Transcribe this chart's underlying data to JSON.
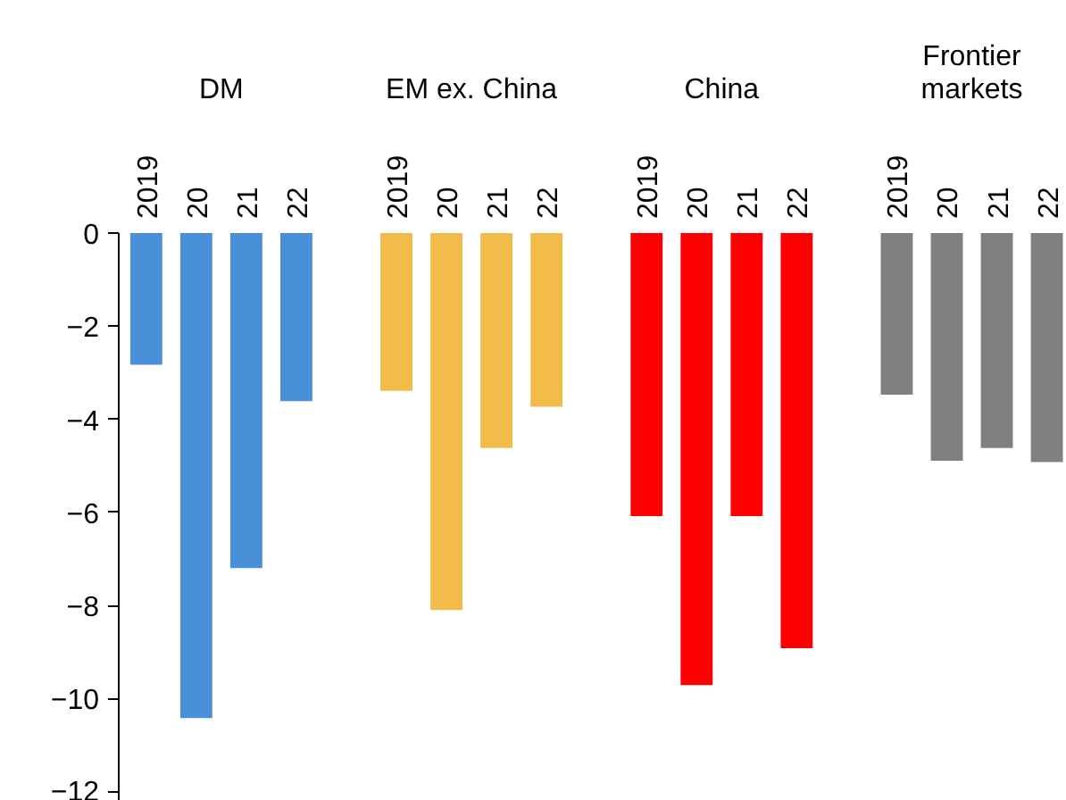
{
  "chart_data": {
    "type": "bar",
    "categories": [
      "2019",
      "20",
      "21",
      "22",
      null,
      "2019",
      "20",
      "21",
      "22",
      null,
      "2019",
      "20",
      "21",
      "22",
      null,
      "2019",
      "20",
      "21",
      "22"
    ],
    "series": [
      {
        "color": "#4a90d9",
        "values": [
          -2.83,
          -10.42,
          -7.2,
          -3.61,
          null,
          null,
          null,
          null,
          null,
          null,
          null,
          null,
          null,
          null,
          null,
          null,
          null,
          null,
          null
        ]
      },
      {
        "color": "#f2bc4b",
        "values": [
          null,
          null,
          null,
          null,
          null,
          -3.39,
          -8.1,
          -4.62,
          -3.73,
          null,
          null,
          null,
          null,
          null,
          null,
          null,
          null,
          null,
          null
        ]
      },
      {
        "color": "#ff0000",
        "values": [
          null,
          null,
          null,
          null,
          null,
          null,
          null,
          null,
          null,
          null,
          -6.08,
          -9.71,
          -6.08,
          -8.92,
          null,
          null,
          null,
          null,
          null
        ]
      },
      {
        "color": "#808080",
        "values": [
          null,
          null,
          null,
          null,
          null,
          null,
          null,
          null,
          null,
          null,
          null,
          null,
          null,
          null,
          null,
          -3.47,
          -4.89,
          -4.62,
          -4.92
        ]
      }
    ],
    "annotations": [
      "DM",
      "EM ex. China",
      "China",
      "Frontier\nmarkets"
    ],
    "ylim": [
      -12.2,
      0
    ],
    "yticks": [
      {
        "value": 0,
        "label": "0"
      },
      {
        "value": -2,
        "label": "−2"
      },
      {
        "value": -4,
        "label": "−4"
      },
      {
        "value": -6,
        "label": "−6"
      },
      {
        "value": -8,
        "label": "−8"
      },
      {
        "value": -10,
        "label": "−10"
      },
      {
        "value": -12,
        "label": "−12"
      }
    ],
    "grid": false
  }
}
